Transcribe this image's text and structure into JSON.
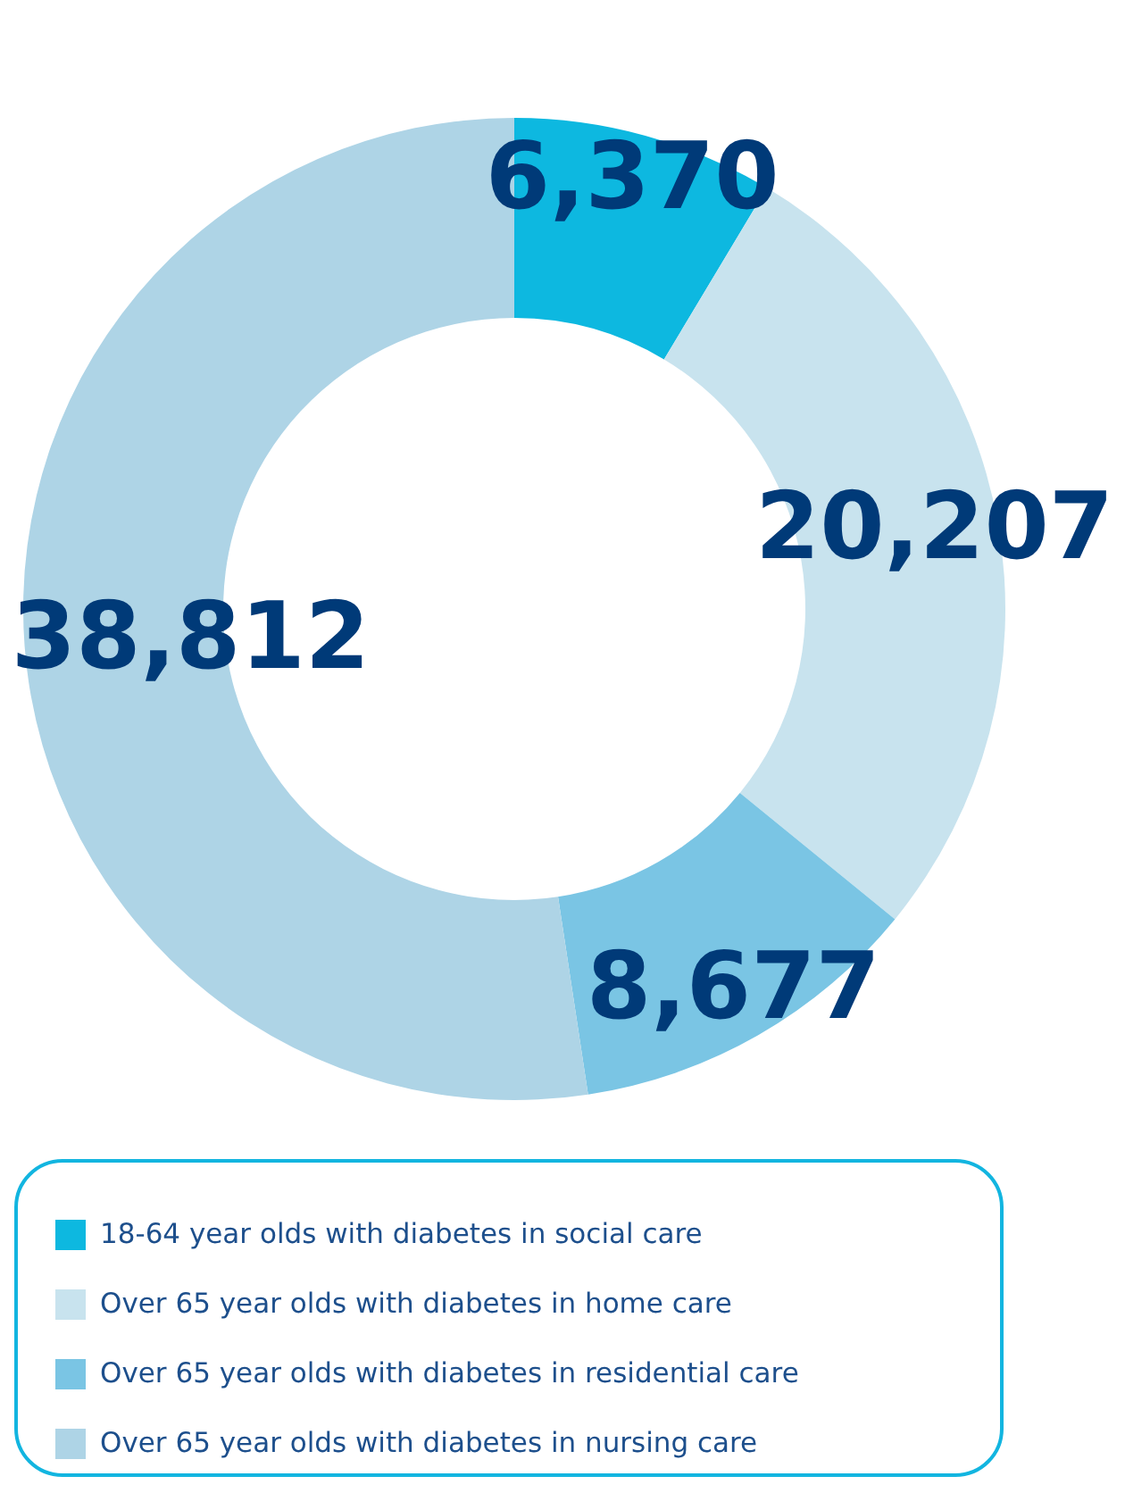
{
  "chart_data": {
    "type": "donut",
    "categories": [
      "18-64 year olds with diabetes in social care",
      "Over 65 year olds with diabetes in home care",
      "Over 65 year olds with diabetes in residential care",
      "Over 65 year olds with diabetes in nursing care"
    ],
    "values": [
      6370,
      20207,
      8677,
      38812
    ],
    "colors": [
      "#0db8e0",
      "#c8e3ee",
      "#7ac5e4",
      "#aed4e6"
    ],
    "value_labels": [
      "6,370",
      "20,207",
      "8,677",
      "38,812"
    ],
    "legend": "bottom"
  }
}
